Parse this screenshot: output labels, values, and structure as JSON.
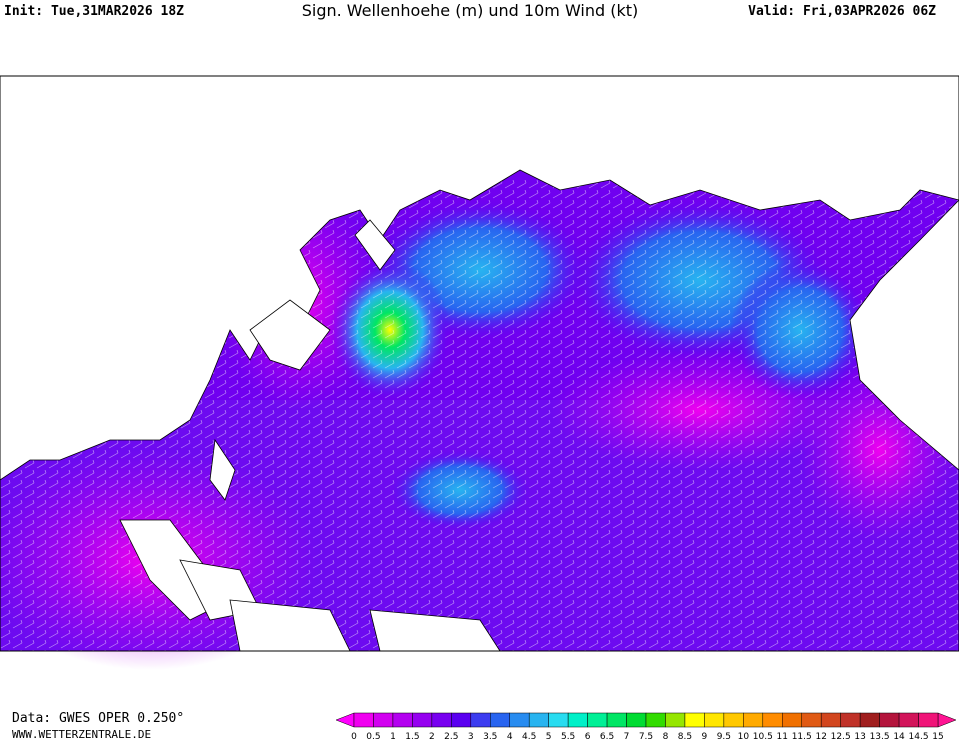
{
  "header": {
    "init": "Init: Tue,31MAR2026 18Z",
    "title": "Sign. Wellenhoehe (m) und 10m Wind (kt)",
    "valid": "Valid: Fri,03APR2026 06Z"
  },
  "footer": {
    "data": "Data: GWES OPER 0.250°",
    "website": "WWW.WETTERZENTRALE.DE"
  },
  "colorbar": {
    "labels": [
      0,
      0.5,
      1,
      1.5,
      2,
      2.5,
      3,
      3.5,
      4,
      4.5,
      5,
      5.5,
      6,
      6.5,
      7,
      7.5,
      8,
      8.5,
      9,
      9.5,
      10,
      10.5,
      11,
      11.5,
      12,
      12.5,
      13,
      13.5,
      14,
      14.5,
      15
    ],
    "colors": [
      "#f000f0",
      "#d200f0",
      "#b400f0",
      "#9600f0",
      "#7800f0",
      "#5a00f0",
      "#3c3cf0",
      "#2864f0",
      "#288cf0",
      "#28b4f0",
      "#28dcf0",
      "#00f0c8",
      "#00f096",
      "#00e664",
      "#00dc32",
      "#32dc00",
      "#96e600",
      "#ffff00",
      "#ffe600",
      "#ffc800",
      "#ffaa00",
      "#ff8c00",
      "#f07000",
      "#e05a14",
      "#d2461e",
      "#c03228",
      "#a01e1e",
      "#b4143c",
      "#d2145a",
      "#f01478"
    ],
    "under_color": "#ff00ff",
    "over_color": "#ff1493"
  }
}
